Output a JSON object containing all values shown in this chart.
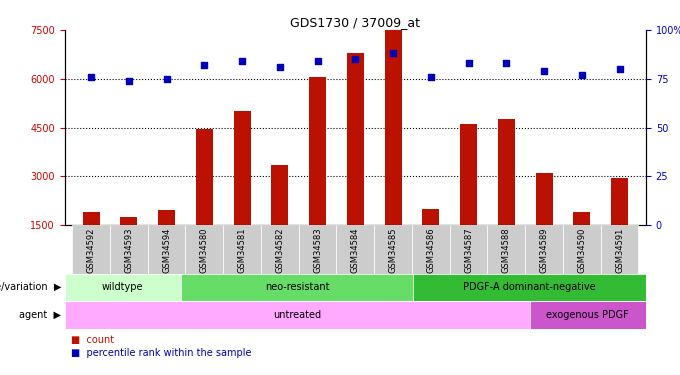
{
  "title": "GDS1730 / 37009_at",
  "samples": [
    "GSM34592",
    "GSM34593",
    "GSM34594",
    "GSM34580",
    "GSM34581",
    "GSM34582",
    "GSM34583",
    "GSM34584",
    "GSM34585",
    "GSM34586",
    "GSM34587",
    "GSM34588",
    "GSM34589",
    "GSM34590",
    "GSM34591"
  ],
  "counts": [
    1900,
    1750,
    1950,
    4450,
    5000,
    3350,
    6050,
    6800,
    7500,
    2000,
    4600,
    4750,
    3100,
    1900,
    2950
  ],
  "percentiles": [
    76,
    74,
    75,
    82,
    84,
    81,
    84,
    85,
    88,
    76,
    83,
    83,
    79,
    77,
    80
  ],
  "ylim_left": [
    1500,
    7500
  ],
  "ylim_right": [
    0,
    100
  ],
  "yticks_left": [
    1500,
    3000,
    4500,
    6000,
    7500
  ],
  "yticks_right": [
    0,
    25,
    50,
    75,
    100
  ],
  "bar_color": "#bb1100",
  "dot_color": "#0000bb",
  "grid_color": "#000000",
  "left_tick_color": "#cc0000",
  "right_tick_color": "#0000cc",
  "genotype_groups": [
    {
      "label": "wildtype",
      "start": 0,
      "end": 3,
      "color": "#ccffcc"
    },
    {
      "label": "neo-resistant",
      "start": 3,
      "end": 9,
      "color": "#66dd66"
    },
    {
      "label": "PDGF-A dominant-negative",
      "start": 9,
      "end": 15,
      "color": "#33bb33"
    }
  ],
  "agent_groups": [
    {
      "label": "untreated",
      "start": 0,
      "end": 12,
      "color": "#ffaaff"
    },
    {
      "label": "exogenous PDGF",
      "start": 12,
      "end": 15,
      "color": "#cc55cc"
    }
  ],
  "xticklabel_bg": "#cccccc",
  "legend_count_label": "count",
  "legend_percentile_label": "percentile rank within the sample",
  "genotype_row_label": "genotype/variation",
  "agent_row_label": "agent"
}
